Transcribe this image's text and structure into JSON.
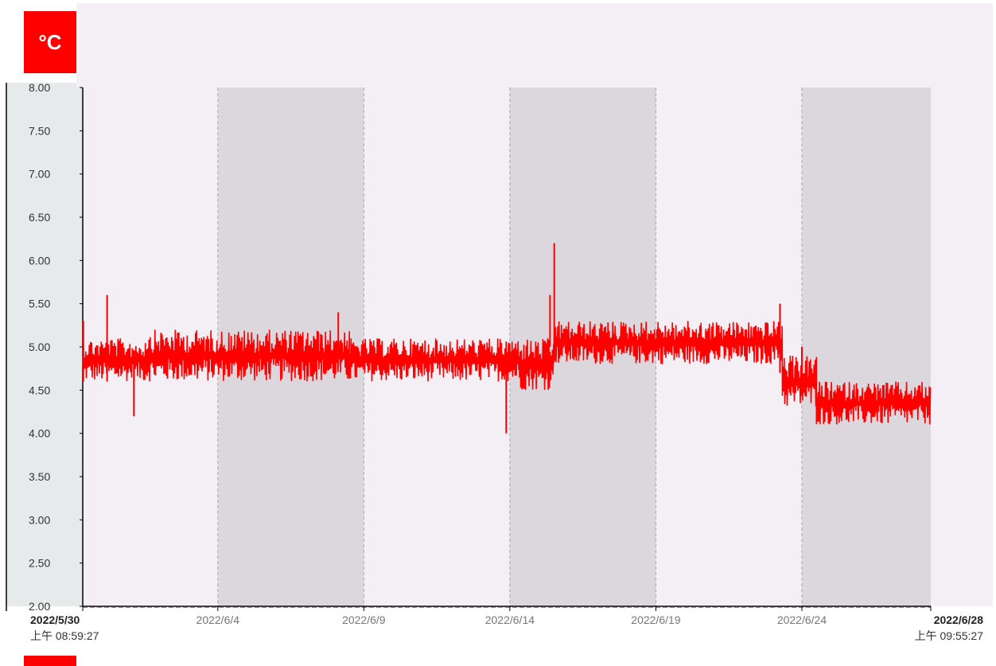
{
  "unit_label": "°C",
  "chart_data": {
    "type": "line",
    "ylim": [
      2.0,
      8.0
    ],
    "yticks": [
      "8.00",
      "7.50",
      "7.00",
      "6.50",
      "6.00",
      "5.50",
      "5.00",
      "4.50",
      "4.00",
      "3.50",
      "3.00",
      "2.50",
      "2.00"
    ],
    "x_range": [
      "2022/5/30 08:59:27",
      "2022/6/28 09:55:27"
    ],
    "xticks": [
      {
        "date": "2022/5/30",
        "time": "上午 08:59:27",
        "at": "2022/5/30 08:59:27",
        "edge": true
      },
      {
        "date": "2022/6/4",
        "at": "2022/6/4 00:00:00"
      },
      {
        "date": "2022/6/9",
        "at": "2022/6/9 00:00:00"
      },
      {
        "date": "2022/6/14",
        "at": "2022/6/14 00:00:00"
      },
      {
        "date": "2022/6/19",
        "at": "2022/6/19 00:00:00"
      },
      {
        "date": "2022/6/24",
        "at": "2022/6/24 00:00:00"
      },
      {
        "date": "2022/6/28",
        "time": "上午 09:55:27",
        "at": "2022/6/28 09:55:27",
        "edge": true
      }
    ],
    "shaded_bands": [
      [
        "2022/6/4 00:00:00",
        "2022/6/9 00:00:00"
      ],
      [
        "2022/6/14 00:00:00",
        "2022/6/19 00:00:00"
      ],
      [
        "2022/6/24 00:00:00",
        "2022/6/28 09:55:27"
      ]
    ],
    "series": [
      {
        "color": "#ff0000",
        "segments": [
          {
            "from": "2022/5/30 09:00",
            "to": "2022/6/1 12:00",
            "low": 4.6,
            "high": 5.1
          },
          {
            "from": "2022/6/1 12:00",
            "to": "2022/6/3 12:00",
            "low": 4.6,
            "high": 5.2
          },
          {
            "from": "2022/6/3 12:00",
            "to": "2022/6/8 12:00",
            "low": 4.6,
            "high": 5.2
          },
          {
            "from": "2022/6/8 12:00",
            "to": "2022/6/14 08:00",
            "low": 4.6,
            "high": 5.1
          },
          {
            "from": "2022/6/14 08:00",
            "to": "2022/6/15 12:00",
            "low": 4.5,
            "high": 5.1
          },
          {
            "from": "2022/6/15 12:00",
            "to": "2022/6/23 08:00",
            "low": 4.8,
            "high": 5.3
          },
          {
            "from": "2022/6/23 08:00",
            "to": "2022/6/24 12:00",
            "low": 4.3,
            "high": 4.9
          },
          {
            "from": "2022/6/24 12:00",
            "to": "2022/6/28 09:55",
            "low": 4.1,
            "high": 4.6
          }
        ],
        "spikes": [
          {
            "at": "2022/5/30 09:30",
            "low": 4.6,
            "high": 5.3
          },
          {
            "at": "2022/5/31 05:00",
            "low": 4.6,
            "high": 5.6
          },
          {
            "at": "2022/6/1 03:00",
            "low": 4.2,
            "high": 4.9
          },
          {
            "at": "2022/6/8 03:00",
            "low": 4.8,
            "high": 5.4
          },
          {
            "at": "2022/6/13 21:00",
            "low": 4.0,
            "high": 4.8
          },
          {
            "at": "2022/6/15 12:30",
            "low": 4.9,
            "high": 6.2
          },
          {
            "at": "2022/6/15 09:00",
            "low": 5.0,
            "high": 5.6
          },
          {
            "at": "2022/6/23 06:00",
            "low": 4.7,
            "high": 5.5
          },
          {
            "at": "2022/6/24 00:00",
            "low": 4.5,
            "high": 5.0
          }
        ]
      }
    ]
  }
}
